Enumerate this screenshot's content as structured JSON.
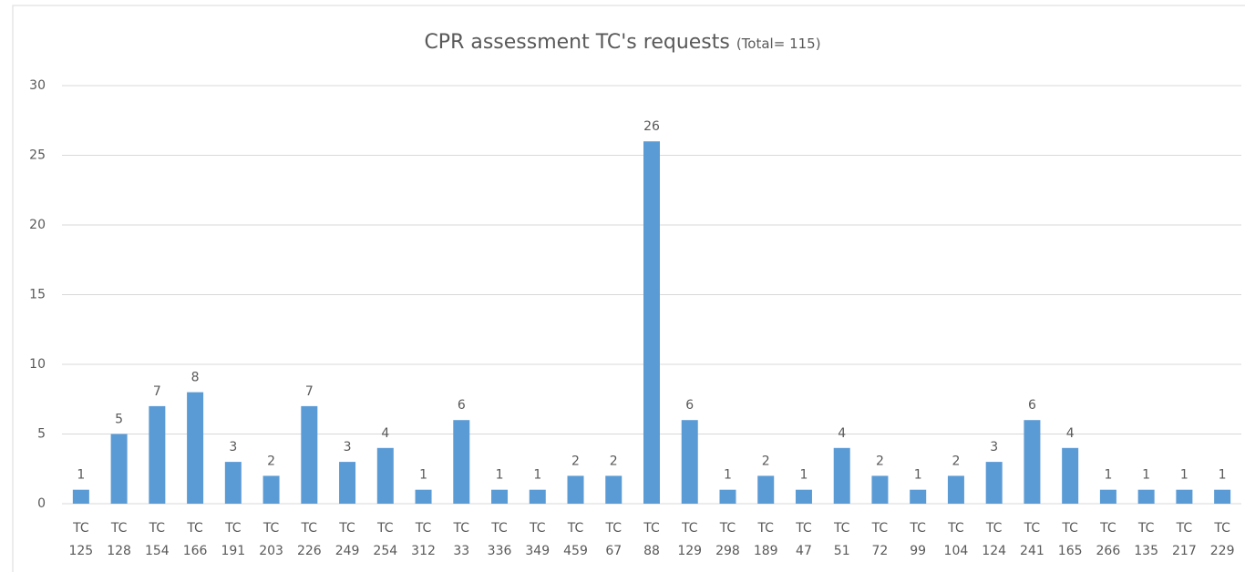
{
  "chart_data": {
    "type": "bar",
    "title": "CPR assessment TC's requests",
    "subtitle": "(Total= 115)",
    "categories": [
      "TC 125",
      "TC 128",
      "TC 154",
      "TC 166",
      "TC 191",
      "TC 203",
      "TC 226",
      "TC 249",
      "TC 254",
      "TC 312",
      "TC 33",
      "TC 336",
      "TC 349",
      "TC 459",
      "TC 67",
      "TC 88",
      "TC 129",
      "TC 298",
      "TC 189",
      "TC 47",
      "TC 51",
      "TC 72",
      "TC 99",
      "TC 104",
      "TC 124",
      "TC 241",
      "TC 165",
      "TC 266",
      "TC 135",
      "TC 217",
      "TC 229"
    ],
    "values": [
      1,
      5,
      7,
      8,
      3,
      2,
      7,
      3,
      4,
      1,
      6,
      1,
      1,
      2,
      2,
      26,
      6,
      1,
      2,
      1,
      4,
      2,
      1,
      2,
      3,
      6,
      4,
      1,
      1,
      1,
      1
    ],
    "color": "#5b9bd5",
    "ylim": [
      0,
      30
    ],
    "yticks": [
      0,
      5,
      10,
      15,
      20,
      25,
      30
    ],
    "grid": true
  }
}
